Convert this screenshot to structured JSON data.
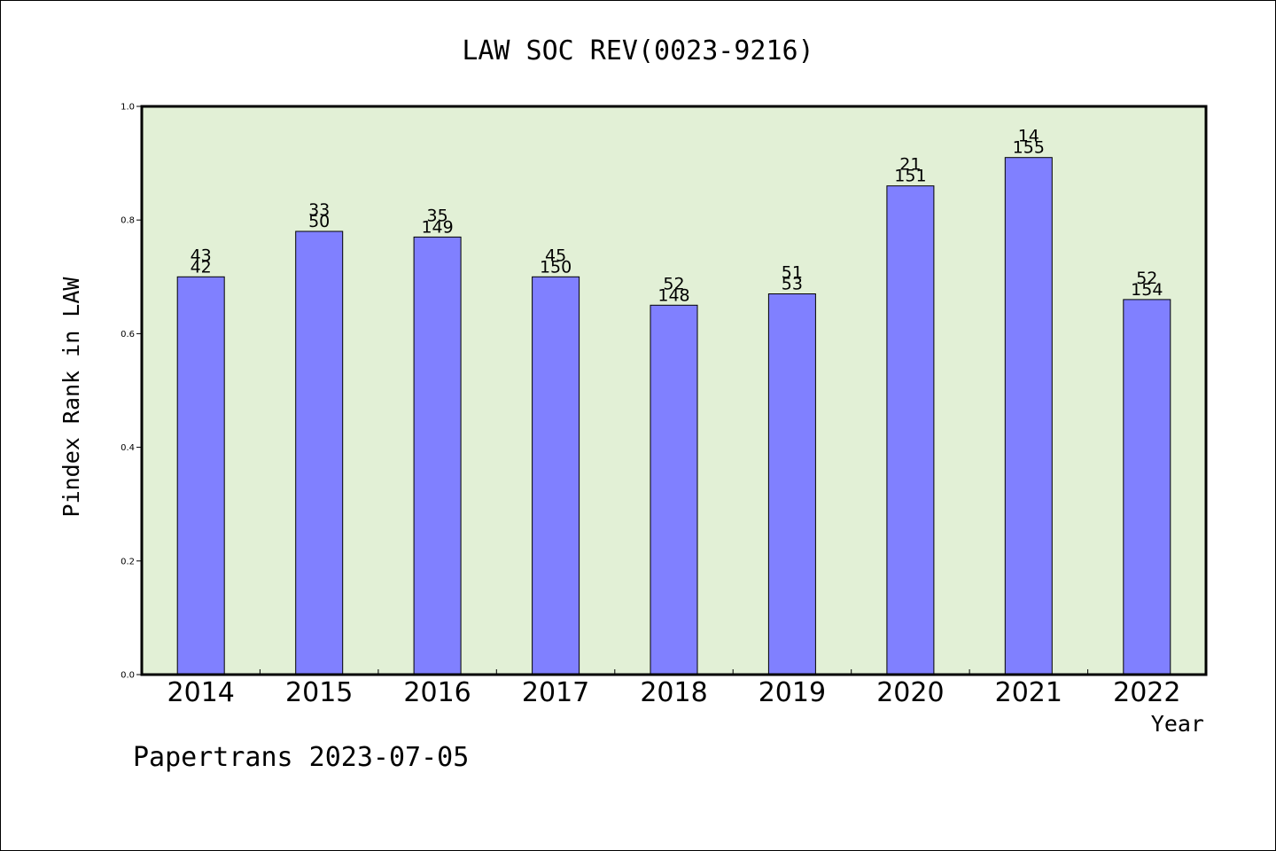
{
  "chart_data": {
    "type": "bar",
    "title": "LAW SOC REV(0023-9216)",
    "xlabel": "Year",
    "ylabel": "Pindex Rank in LAW",
    "ylim": [
      0,
      1.0
    ],
    "yticks": [
      "0.0",
      "0.2",
      "0.4",
      "0.6",
      "0.8",
      "1.0"
    ],
    "categories": [
      "2014",
      "2015",
      "2016",
      "2017",
      "2018",
      "2019",
      "2020",
      "2021",
      "2022"
    ],
    "values": [
      0.7,
      0.78,
      0.77,
      0.7,
      0.65,
      0.67,
      0.86,
      0.91,
      0.66
    ],
    "labels_top": [
      "43",
      "33",
      "35",
      "45",
      "52",
      "51",
      "21",
      "14",
      "52"
    ],
    "labels_bottom": [
      "42",
      "50",
      "149",
      "150",
      "148",
      "53",
      "151",
      "155",
      "154"
    ],
    "grid": false,
    "colors": {
      "bar": "#8080ff",
      "plot_bg": "#e2f0d6",
      "axis": "#000000"
    }
  },
  "footer": "Papertrans 2023-07-05"
}
